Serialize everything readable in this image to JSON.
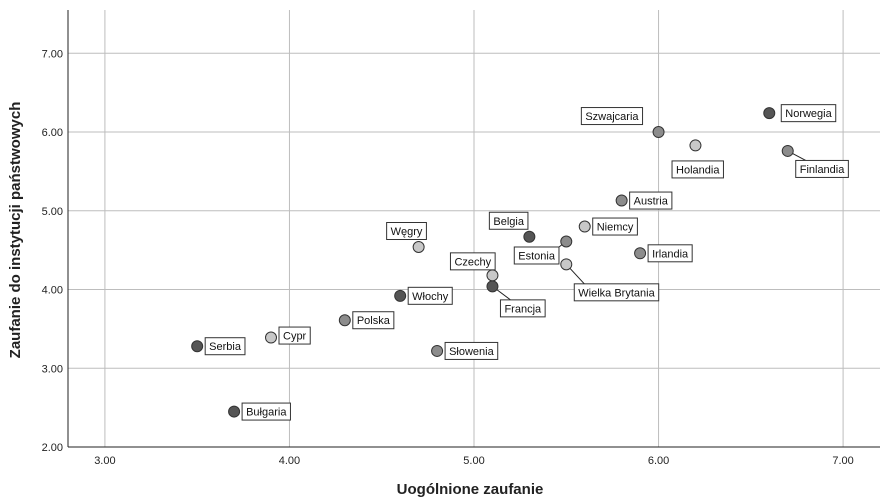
{
  "chart_data": {
    "type": "scatter",
    "xlabel": "Uogólnione zaufanie",
    "ylabel": "Zaufanie do instytucji państwowych",
    "xlim": [
      2.8,
      7.2
    ],
    "ylim": [
      2.0,
      7.55
    ],
    "xticks": [
      "3.00",
      "4.00",
      "5.00",
      "6.00",
      "7.00"
    ],
    "yticks": [
      "2.00",
      "3.00",
      "4.00",
      "5.00",
      "6.00",
      "7.00"
    ],
    "grid": true,
    "colors": {
      "dark": "#555555",
      "medium": "#8c8c8c",
      "light": "#c8c8c8"
    },
    "points": [
      {
        "label": "Norwegia",
        "x": 6.6,
        "y": 6.24,
        "shade": "dark"
      },
      {
        "label": "Szwajcaria",
        "x": 6.0,
        "y": 6.0,
        "shade": "medium"
      },
      {
        "label": "Holandia",
        "x": 6.2,
        "y": 5.83,
        "shade": "light"
      },
      {
        "label": "Finlandia",
        "x": 6.7,
        "y": 5.76,
        "shade": "medium"
      },
      {
        "label": "Austria",
        "x": 5.8,
        "y": 5.13,
        "shade": "medium"
      },
      {
        "label": "Niemcy",
        "x": 5.6,
        "y": 4.8,
        "shade": "light"
      },
      {
        "label": "Belgia",
        "x": 5.3,
        "y": 4.67,
        "shade": "dark"
      },
      {
        "label": "Estonia",
        "x": 5.5,
        "y": 4.61,
        "shade": "medium"
      },
      {
        "label": "Węgry",
        "x": 4.7,
        "y": 4.54,
        "shade": "light"
      },
      {
        "label": "Irlandia",
        "x": 5.9,
        "y": 4.46,
        "shade": "medium"
      },
      {
        "label": "Wielka Brytania",
        "x": 5.5,
        "y": 4.32,
        "shade": "light"
      },
      {
        "label": "Czechy",
        "x": 5.1,
        "y": 4.18,
        "shade": "light"
      },
      {
        "label": "Francja",
        "x": 5.1,
        "y": 4.04,
        "shade": "dark"
      },
      {
        "label": "Włochy",
        "x": 4.6,
        "y": 3.92,
        "shade": "dark"
      },
      {
        "label": "Polska",
        "x": 4.3,
        "y": 3.61,
        "shade": "medium"
      },
      {
        "label": "Cypr",
        "x": 3.9,
        "y": 3.39,
        "shade": "light"
      },
      {
        "label": "Serbia",
        "x": 3.5,
        "y": 3.28,
        "shade": "dark"
      },
      {
        "label": "Słowenia",
        "x": 4.8,
        "y": 3.22,
        "shade": "medium"
      },
      {
        "label": "Bułgaria",
        "x": 3.7,
        "y": 2.45,
        "shade": "dark"
      }
    ]
  }
}
